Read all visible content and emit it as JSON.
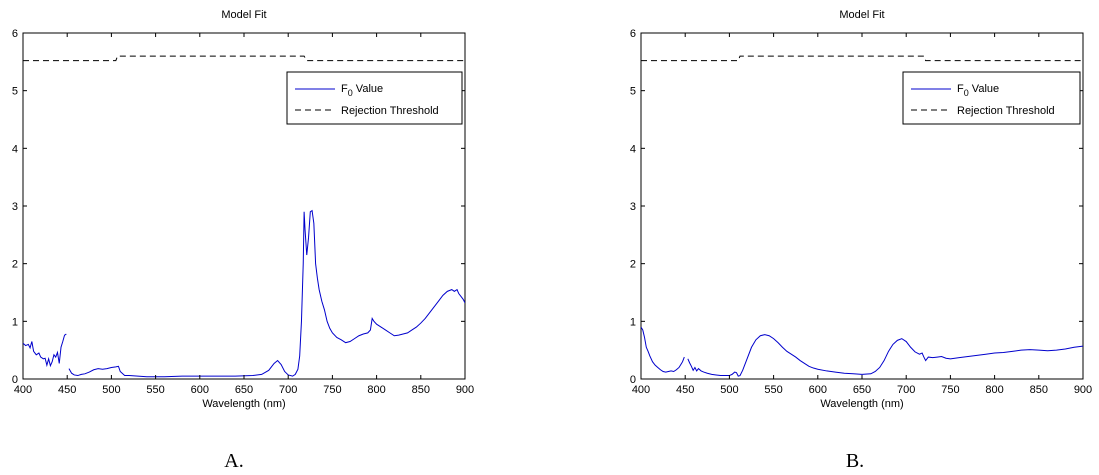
{
  "chart_data": [
    {
      "type": "line",
      "panel_label": "A.",
      "title": "Model Fit",
      "xlabel": "Wavelength (nm)",
      "ylabel": "",
      "xlim": [
        400,
        900
      ],
      "ylim": [
        0,
        6
      ],
      "xticks": [
        400,
        450,
        500,
        550,
        600,
        650,
        700,
        750,
        800,
        850,
        900
      ],
      "yticks": [
        0,
        1,
        2,
        3,
        4,
        5,
        6
      ],
      "grid": false,
      "legend": {
        "placement": "top-right",
        "entries": [
          "F0 Value",
          "Rejection Threshold"
        ]
      },
      "series": [
        {
          "name": "F0 Value",
          "color": "#0000cc",
          "style": "solid",
          "segments": [
            [
              [
                400,
                0.62
              ],
              [
                403,
                0.58
              ],
              [
                406,
                0.6
              ],
              [
                408,
                0.54
              ],
              [
                410,
                0.65
              ],
              [
                412,
                0.48
              ],
              [
                415,
                0.42
              ],
              [
                418,
                0.45
              ],
              [
                420,
                0.38
              ],
              [
                423,
                0.35
              ],
              [
                425,
                0.36
              ],
              [
                427,
                0.24
              ],
              [
                429,
                0.35
              ],
              [
                431,
                0.23
              ],
              [
                433,
                0.3
              ],
              [
                435,
                0.42
              ],
              [
                437,
                0.38
              ],
              [
                439,
                0.46
              ],
              [
                441,
                0.27
              ],
              [
                443,
                0.55
              ],
              [
                445,
                0.65
              ],
              [
                447,
                0.76
              ],
              [
                449,
                0.78
              ]
            ],
            [
              [
                452,
                0.18
              ],
              [
                455,
                0.1
              ],
              [
                458,
                0.07
              ],
              [
                462,
                0.06
              ],
              [
                466,
                0.08
              ],
              [
                470,
                0.09
              ],
              [
                475,
                0.12
              ],
              [
                480,
                0.16
              ],
              [
                485,
                0.18
              ],
              [
                490,
                0.17
              ],
              [
                495,
                0.18
              ],
              [
                500,
                0.2
              ],
              [
                505,
                0.21
              ],
              [
                508,
                0.22
              ],
              [
                510,
                0.13
              ],
              [
                515,
                0.06
              ],
              [
                520,
                0.06
              ],
              [
                530,
                0.05
              ],
              [
                540,
                0.04
              ],
              [
                560,
                0.04
              ],
              [
                580,
                0.05
              ],
              [
                600,
                0.05
              ],
              [
                620,
                0.05
              ],
              [
                640,
                0.05
              ],
              [
                660,
                0.06
              ],
              [
                670,
                0.08
              ],
              [
                678,
                0.15
              ],
              [
                684,
                0.27
              ],
              [
                688,
                0.32
              ],
              [
                692,
                0.25
              ],
              [
                696,
                0.13
              ],
              [
                700,
                0.07
              ],
              [
                705,
                0.05
              ],
              [
                708,
                0.08
              ],
              [
                711,
                0.17
              ],
              [
                713,
                0.4
              ],
              [
                715,
                1.0
              ],
              [
                717,
                2.0
              ],
              [
                718,
                2.9
              ],
              [
                719,
                2.6
              ],
              [
                721,
                2.15
              ],
              [
                723,
                2.45
              ],
              [
                725,
                2.9
              ],
              [
                727,
                2.92
              ],
              [
                729,
                2.7
              ],
              [
                731,
                2.0
              ],
              [
                733,
                1.75
              ],
              [
                735,
                1.55
              ],
              [
                738,
                1.35
              ],
              [
                741,
                1.2
              ],
              [
                744,
                1.0
              ],
              [
                747,
                0.88
              ],
              [
                750,
                0.8
              ],
              [
                755,
                0.72
              ],
              [
                760,
                0.68
              ],
              [
                765,
                0.63
              ],
              [
                770,
                0.65
              ],
              [
                775,
                0.7
              ],
              [
                780,
                0.75
              ],
              [
                785,
                0.78
              ],
              [
                790,
                0.8
              ],
              [
                793,
                0.85
              ],
              [
                795,
                1.05
              ],
              [
                797,
                1.0
              ],
              [
                800,
                0.95
              ],
              [
                805,
                0.9
              ],
              [
                810,
                0.85
              ],
              [
                815,
                0.8
              ],
              [
                820,
                0.75
              ],
              [
                825,
                0.76
              ],
              [
                830,
                0.78
              ],
              [
                835,
                0.8
              ],
              [
                840,
                0.85
              ],
              [
                845,
                0.9
              ],
              [
                850,
                0.97
              ],
              [
                855,
                1.05
              ],
              [
                860,
                1.15
              ],
              [
                865,
                1.25
              ],
              [
                870,
                1.35
              ],
              [
                875,
                1.45
              ],
              [
                880,
                1.52
              ],
              [
                885,
                1.55
              ],
              [
                888,
                1.52
              ],
              [
                891,
                1.55
              ],
              [
                893,
                1.48
              ],
              [
                896,
                1.42
              ],
              [
                898,
                1.38
              ],
              [
                900,
                1.32
              ]
            ]
          ]
        },
        {
          "name": "Rejection Threshold",
          "color": "#000000",
          "style": "dashed",
          "segments": [
            [
              [
                400,
                5.52
              ],
              [
                505,
                5.52
              ],
              [
                507,
                5.6
              ],
              [
                511,
                5.6
              ],
              [
                718,
                5.6
              ],
              [
                721,
                5.52
              ],
              [
                900,
                5.52
              ]
            ]
          ]
        }
      ]
    },
    {
      "type": "line",
      "panel_label": "B.",
      "title": "Model Fit",
      "xlabel": "Wavelength (nm)",
      "ylabel": "",
      "xlim": [
        400,
        900
      ],
      "ylim": [
        0,
        6
      ],
      "xticks": [
        400,
        450,
        500,
        550,
        600,
        650,
        700,
        750,
        800,
        850,
        900
      ],
      "yticks": [
        0,
        1,
        2,
        3,
        4,
        5,
        6
      ],
      "grid": false,
      "legend": {
        "placement": "top-right",
        "entries": [
          "F0 Value",
          "Rejection Threshold"
        ]
      },
      "series": [
        {
          "name": "F0 Value",
          "color": "#0000cc",
          "style": "solid",
          "segments": [
            [
              [
                400,
                0.9
              ],
              [
                402,
                0.85
              ],
              [
                404,
                0.72
              ],
              [
                406,
                0.55
              ],
              [
                408,
                0.48
              ],
              [
                410,
                0.4
              ],
              [
                413,
                0.3
              ],
              [
                416,
                0.24
              ],
              [
                419,
                0.2
              ],
              [
                422,
                0.16
              ],
              [
                425,
                0.13
              ],
              [
                428,
                0.12
              ],
              [
                431,
                0.13
              ],
              [
                434,
                0.14
              ],
              [
                437,
                0.13
              ],
              [
                440,
                0.16
              ],
              [
                443,
                0.2
              ],
              [
                445,
                0.25
              ],
              [
                447,
                0.3
              ],
              [
                449,
                0.38
              ]
            ],
            [
              [
                453,
                0.35
              ],
              [
                455,
                0.28
              ],
              [
                457,
                0.22
              ],
              [
                459,
                0.15
              ],
              [
                461,
                0.2
              ],
              [
                463,
                0.14
              ],
              [
                465,
                0.18
              ],
              [
                468,
                0.14
              ],
              [
                471,
                0.12
              ],
              [
                475,
                0.1
              ],
              [
                480,
                0.08
              ],
              [
                485,
                0.07
              ],
              [
                490,
                0.06
              ],
              [
                495,
                0.06
              ],
              [
                500,
                0.06
              ],
              [
                503,
                0.08
              ],
              [
                506,
                0.12
              ],
              [
                508,
                0.11
              ],
              [
                510,
                0.05
              ],
              [
                512,
                0.06
              ],
              [
                515,
                0.15
              ],
              [
                520,
                0.35
              ],
              [
                525,
                0.55
              ],
              [
                530,
                0.68
              ],
              [
                535,
                0.75
              ],
              [
                540,
                0.77
              ],
              [
                545,
                0.75
              ],
              [
                550,
                0.7
              ],
              [
                555,
                0.63
              ],
              [
                560,
                0.55
              ],
              [
                565,
                0.48
              ],
              [
                570,
                0.43
              ],
              [
                575,
                0.38
              ],
              [
                580,
                0.32
              ],
              [
                585,
                0.27
              ],
              [
                590,
                0.22
              ],
              [
                595,
                0.19
              ],
              [
                600,
                0.17
              ],
              [
                610,
                0.14
              ],
              [
                620,
                0.12
              ],
              [
                630,
                0.1
              ],
              [
                640,
                0.09
              ],
              [
                650,
                0.08
              ],
              [
                660,
                0.09
              ],
              [
                665,
                0.13
              ],
              [
                670,
                0.2
              ],
              [
                675,
                0.32
              ],
              [
                680,
                0.48
              ],
              [
                685,
                0.6
              ],
              [
                690,
                0.67
              ],
              [
                695,
                0.7
              ],
              [
                700,
                0.65
              ],
              [
                705,
                0.55
              ],
              [
                710,
                0.47
              ],
              [
                715,
                0.43
              ],
              [
                718,
                0.45
              ],
              [
                720,
                0.38
              ],
              [
                722,
                0.32
              ],
              [
                725,
                0.38
              ],
              [
                730,
                0.37
              ],
              [
                735,
                0.38
              ],
              [
                740,
                0.39
              ],
              [
                745,
                0.36
              ],
              [
                750,
                0.35
              ],
              [
                760,
                0.37
              ],
              [
                770,
                0.39
              ],
              [
                780,
                0.41
              ],
              [
                790,
                0.43
              ],
              [
                800,
                0.45
              ],
              [
                810,
                0.46
              ],
              [
                820,
                0.48
              ],
              [
                830,
                0.5
              ],
              [
                840,
                0.51
              ],
              [
                850,
                0.5
              ],
              [
                860,
                0.49
              ],
              [
                870,
                0.5
              ],
              [
                880,
                0.52
              ],
              [
                890,
                0.55
              ],
              [
                900,
                0.57
              ]
            ]
          ]
        },
        {
          "name": "Rejection Threshold",
          "color": "#000000",
          "style": "dashed",
          "segments": [
            [
              [
                400,
                5.52
              ],
              [
                510,
                5.52
              ],
              [
                512,
                5.6
              ],
              [
                516,
                5.6
              ],
              [
                720,
                5.6
              ],
              [
                722,
                5.52
              ],
              [
                900,
                5.52
              ]
            ]
          ]
        }
      ]
    }
  ]
}
